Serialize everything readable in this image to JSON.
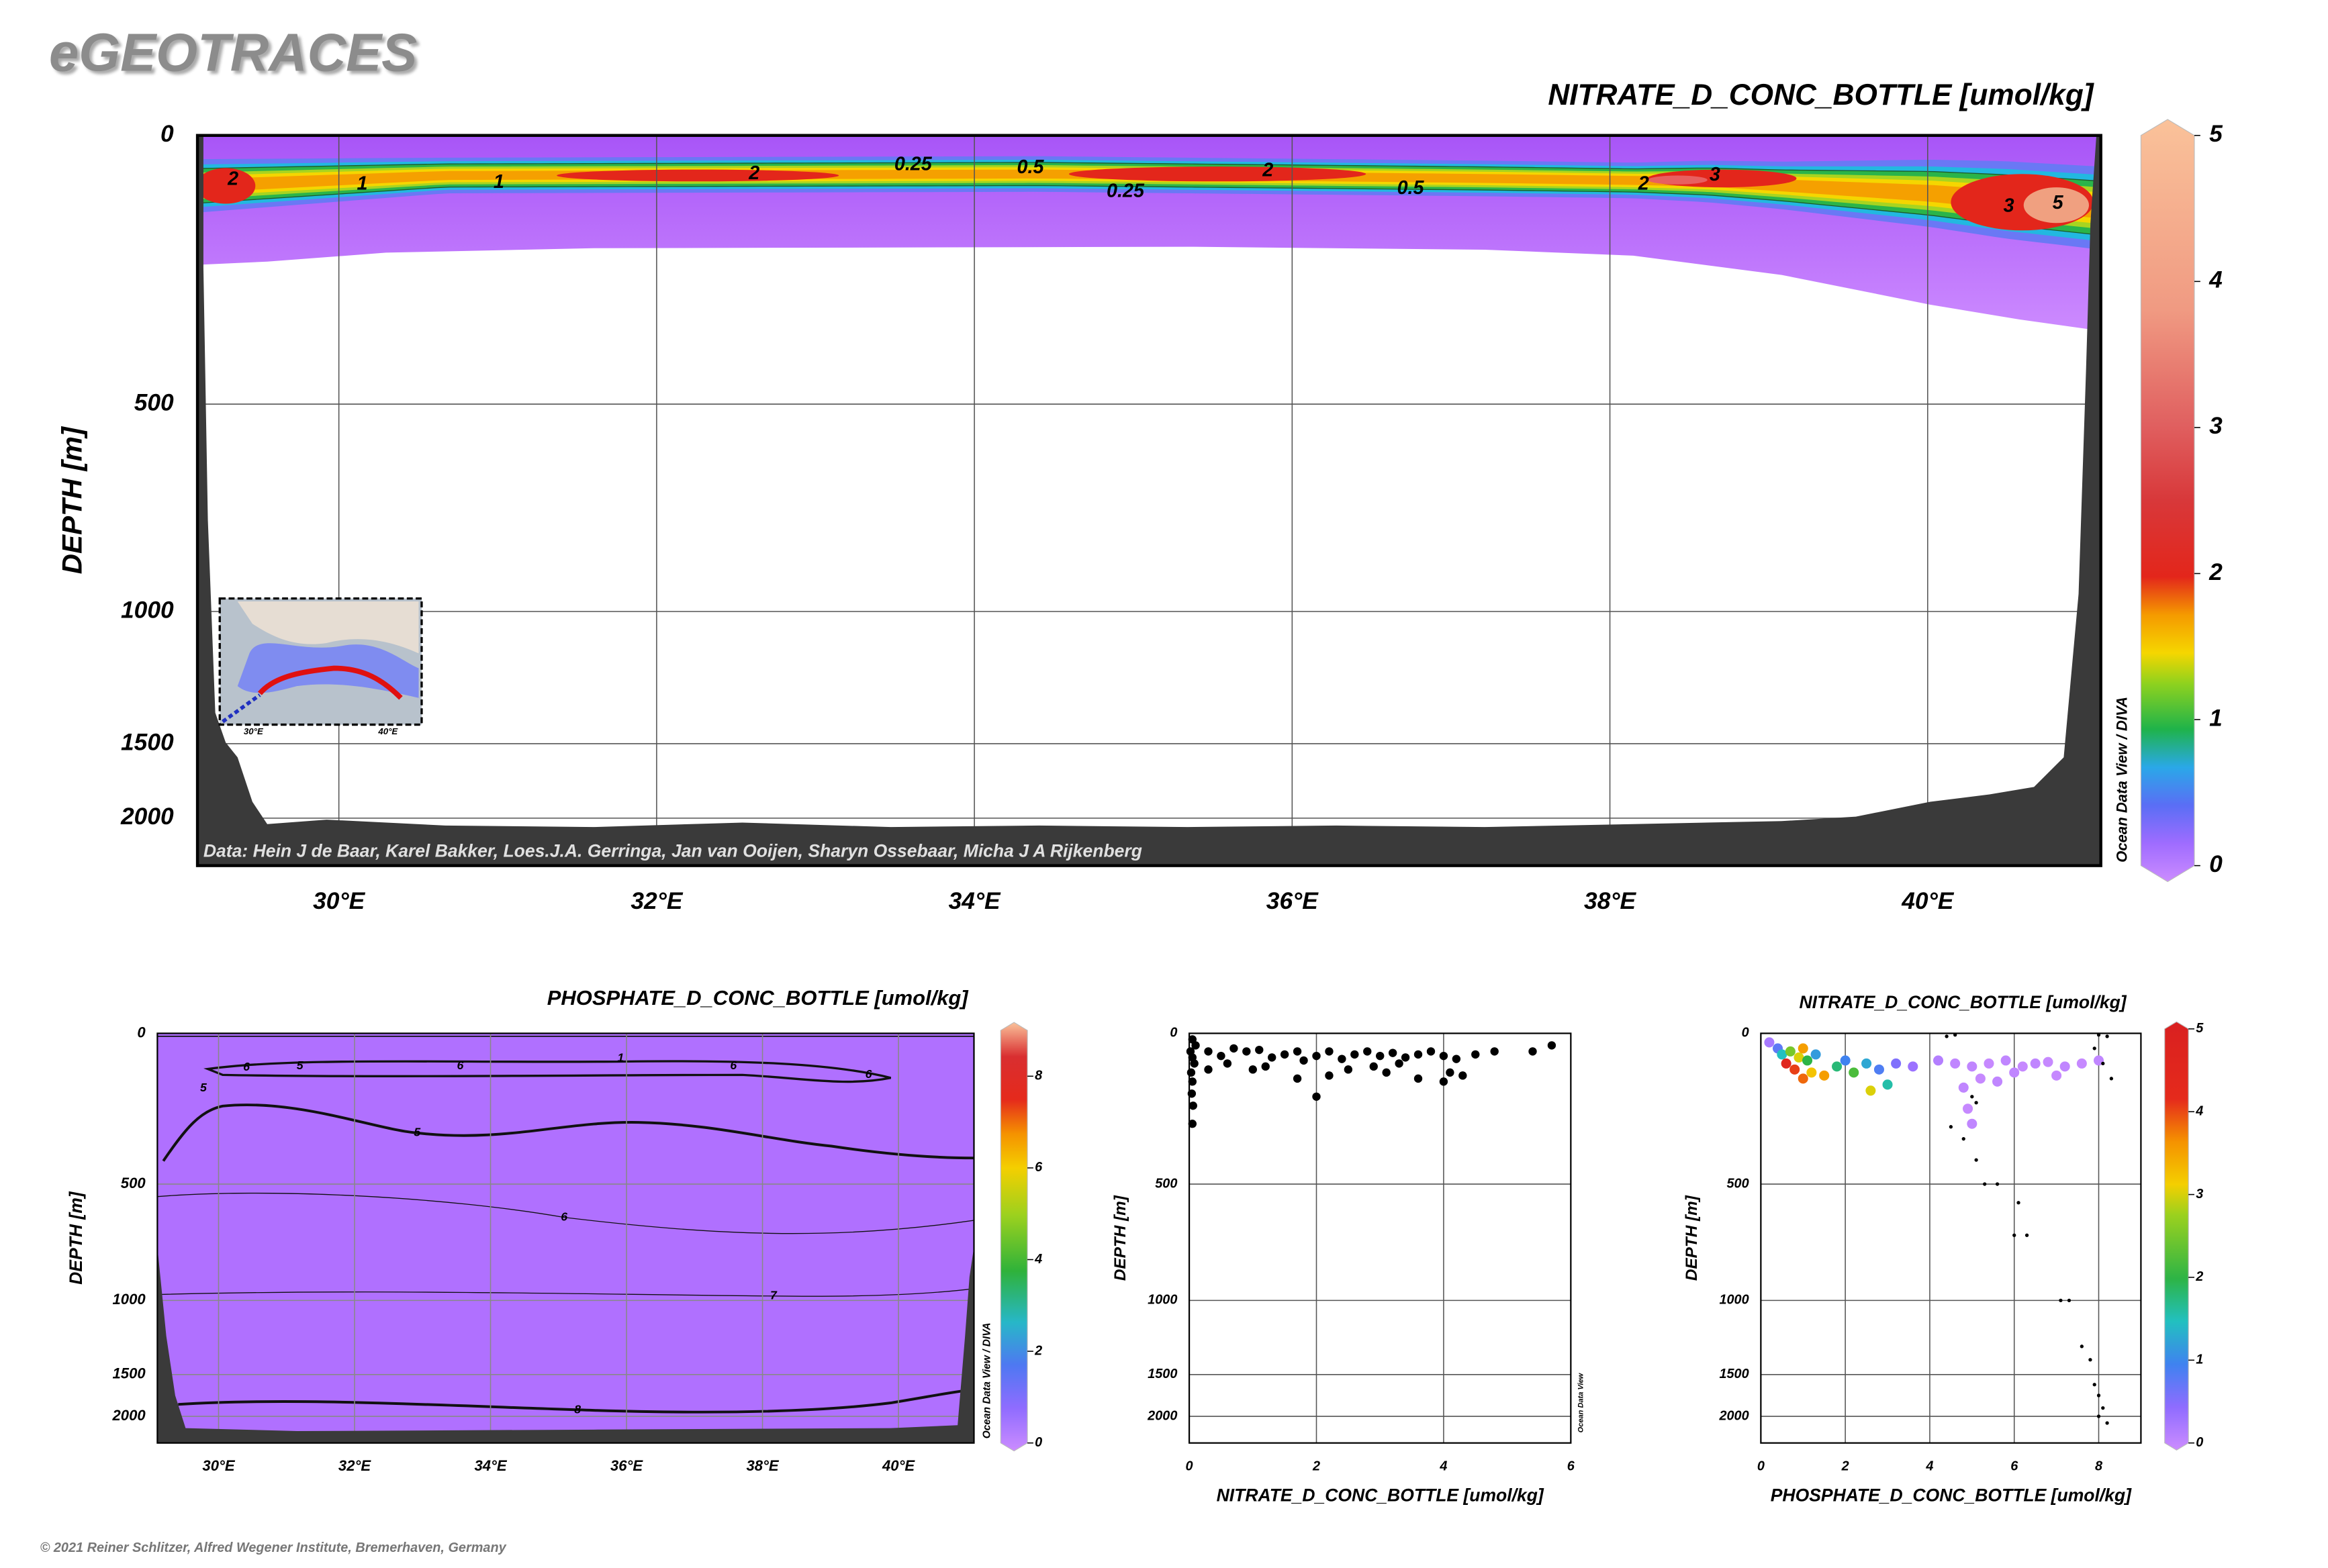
{
  "header": {
    "logo": "eGEOTRACES",
    "copyright": "© 2021 Reiner Schlitzer, Alfred Wegener Institute, Bremerhaven, Germany"
  },
  "chart_data": [
    {
      "type": "section",
      "title": "NITRATE_D_CONC_BOTTLE [umol/kg]",
      "y_label": "DEPTH [m]",
      "credit": "Data: Hein J de Baar, Karel Bakker, Loes.J.A. Gerringa, Jan van Ooijen, Sharyn Ossebaar, Micha J A Rijkenberg",
      "watermark": "Ocean Data View / DIVA",
      "xlim": [
        29.11,
        41.09
      ],
      "xticks": [
        {
          "value": 30,
          "label": "30°E"
        },
        {
          "value": 32,
          "label": "32°E"
        },
        {
          "value": 34,
          "label": "34°E"
        },
        {
          "value": 36,
          "label": "36°E"
        },
        {
          "value": 38,
          "label": "38°E"
        },
        {
          "value": 40,
          "label": "40°E"
        }
      ],
      "ylim": [
        0,
        2200
      ],
      "yticks": [
        0,
        500,
        1000,
        1500,
        2000
      ],
      "grid": true,
      "colorbar": {
        "clim": [
          0,
          5
        ],
        "ticks": [
          0,
          1,
          2,
          3,
          4,
          5
        ]
      },
      "contour_labels": [
        2,
        1,
        1,
        2,
        0.25,
        0.5,
        0.25,
        2,
        0.5,
        2,
        3,
        3,
        5
      ],
      "inset_map": {
        "xticks": [
          {
            "value": 30,
            "label": "30°E"
          },
          {
            "value": 40,
            "label": "40°E"
          }
        ]
      }
    },
    {
      "type": "section",
      "title": "PHOSPHATE_D_CONC_BOTTLE [umol/kg]",
      "y_label": "DEPTH [m]",
      "watermark": "Ocean Data View / DIVA",
      "xlim": [
        29.1,
        41.11
      ],
      "xticks": [
        {
          "value": 30,
          "label": "30°E"
        },
        {
          "value": 32,
          "label": "32°E"
        },
        {
          "value": 34,
          "label": "34°E"
        },
        {
          "value": 36,
          "label": "36°E"
        },
        {
          "value": 38,
          "label": "38°E"
        },
        {
          "value": 40,
          "label": "40°E"
        }
      ],
      "ylim": [
        0,
        2200
      ],
      "yticks": [
        0,
        500,
        1000,
        1500,
        2000
      ],
      "grid": true,
      "colorbar": {
        "clim": [
          0,
          9
        ],
        "ticks": [
          0,
          2,
          4,
          6,
          8
        ]
      },
      "contour_labels": [
        6,
        5,
        6,
        1,
        6,
        6,
        5,
        5,
        6,
        7,
        8
      ]
    },
    {
      "type": "scatter",
      "x_label": "NITRATE_D_CONC_BOTTLE [umol/kg]",
      "y_label": "DEPTH [m]",
      "watermark": "Ocean Data View",
      "xlim": [
        0,
        6
      ],
      "xticks": [
        0,
        2,
        4,
        6
      ],
      "ylim": [
        0,
        2200
      ],
      "yticks": [
        0,
        500,
        1000,
        1500,
        2000
      ],
      "grid": true,
      "series": [
        {
          "color": "#000000",
          "x": [
            0.05,
            0.1,
            0.02,
            0.05,
            0.08,
            0.03,
            0.05,
            0.04,
            0.06,
            0.05,
            0.3,
            0.5,
            0.7,
            0.9,
            1.1,
            1.3,
            1.5,
            1.7,
            1.8,
            2.0,
            2.2,
            2.4,
            2.6,
            2.8,
            3.0,
            3.2,
            3.4,
            3.6,
            3.8,
            4.0,
            4.2,
            4.5,
            4.8,
            5.7,
            5.4,
            1.7,
            2.0,
            2.2,
            2.5,
            3.1,
            3.6,
            4.0,
            4.1,
            4.3,
            0.3,
            0.6,
            1.0,
            1.2,
            2.9,
            3.3
          ],
          "y": [
            20,
            40,
            60,
            80,
            100,
            130,
            160,
            200,
            240,
            300,
            60,
            75,
            50,
            60,
            55,
            80,
            70,
            60,
            90,
            75,
            60,
            85,
            70,
            60,
            75,
            65,
            80,
            70,
            60,
            75,
            85,
            70,
            60,
            40,
            60,
            150,
            210,
            140,
            120,
            130,
            150,
            160,
            130,
            140,
            120,
            100,
            120,
            110,
            110,
            100
          ]
        }
      ]
    },
    {
      "type": "scatter",
      "title": "NITRATE_D_CONC_BOTTLE [umol/kg]",
      "x_label": "PHOSPHATE_D_CONC_BOTTLE [umol/kg]",
      "y_label": "DEPTH [m]",
      "xlim": [
        0,
        9
      ],
      "xticks": [
        0,
        2,
        4,
        6,
        8
      ],
      "ylim": [
        0,
        2200
      ],
      "yticks": [
        0,
        500,
        1000,
        1500,
        2000
      ],
      "grid": true,
      "colorbar": {
        "clim": [
          0,
          5
        ],
        "ticks": [
          0,
          1,
          2,
          3,
          4,
          5
        ]
      },
      "series": [
        {
          "x": [
            0.2,
            0.4,
            0.5,
            0.7,
            0.9,
            1.0,
            1.1,
            1.3,
            0.6,
            0.8,
            1.0,
            1.2,
            1.5,
            1.8,
            2.0,
            2.2,
            2.5,
            2.8,
            3.0,
            3.2,
            3.6,
            4.2,
            4.6,
            5.0,
            5.4,
            5.8,
            6.2,
            6.5,
            6.8,
            7.2,
            7.6,
            8.0,
            4.8,
            5.2,
            5.6,
            4.9,
            5.0,
            6.0,
            7.0,
            2.6
          ],
          "y": [
            30,
            50,
            70,
            60,
            80,
            50,
            90,
            70,
            100,
            120,
            150,
            130,
            140,
            110,
            90,
            130,
            100,
            120,
            170,
            100,
            110,
            90,
            100,
            110,
            100,
            90,
            110,
            100,
            95,
            110,
            100,
            90,
            180,
            150,
            160,
            250,
            300,
            130,
            140,
            190
          ],
          "color_values": [
            0.3,
            0.8,
            1.5,
            2.5,
            3,
            3.5,
            2,
            1.2,
            4.5,
            4,
            3.8,
            3.2,
            3.5,
            1.8,
            1.0,
            2.2,
            1.3,
            0.9,
            1.6,
            0.6,
            0.4,
            0.2,
            0.1,
            0.1,
            0.05,
            0.1,
            0.05,
            0.1,
            0.05,
            0.1,
            0.05,
            0.1,
            0.1,
            0.05,
            0.1,
            0.05,
            0.1,
            0.1,
            0.05,
            3
          ]
        },
        {
          "color": "#000000",
          "x": [
            4.4,
            4.6,
            8.0,
            8.2,
            7.9,
            8.1,
            8.3,
            4.8,
            4.5,
            5.1,
            5.3,
            5.6,
            6.1,
            6.0,
            6.3,
            7.1,
            7.3,
            7.6,
            7.8,
            7.9,
            8.0,
            8.1,
            8.2,
            8.0,
            5.0,
            5.1
          ],
          "y": [
            10,
            5,
            5,
            10,
            50,
            100,
            150,
            350,
            310,
            420,
            500,
            500,
            580,
            720,
            720,
            1000,
            1000,
            1310,
            1400,
            1620,
            1750,
            1900,
            2050,
            2000,
            210,
            230
          ]
        }
      ]
    }
  ]
}
